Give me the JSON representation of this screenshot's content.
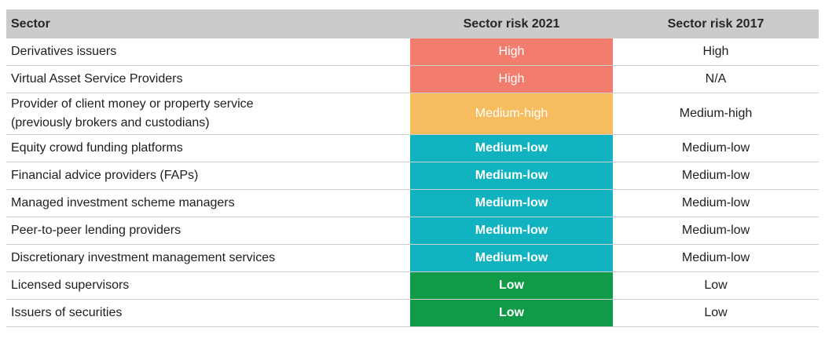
{
  "header": {
    "sector": "Sector",
    "risk_2021": "Sector risk 2021",
    "risk_2017": "Sector risk 2017"
  },
  "rows": [
    {
      "sector": "Derivatives issuers",
      "risk_2021": "High",
      "risk_2017": "High"
    },
    {
      "sector": "Virtual Asset Service Providers",
      "risk_2021": "High",
      "risk_2017": "N/A"
    },
    {
      "sector_line1": "Provider of client money or property service",
      "sector_line2": "(previously brokers and custodians)",
      "risk_2021": "Medium-high",
      "risk_2017": "Medium-high"
    },
    {
      "sector": "Equity crowd funding platforms",
      "risk_2021": "Medium-low",
      "risk_2017": "Medium-low"
    },
    {
      "sector": "Financial advice providers (FAPs)",
      "risk_2021": "Medium-low",
      "risk_2017": "Medium-low"
    },
    {
      "sector": "Managed investment scheme managers",
      "risk_2021": "Medium-low",
      "risk_2017": "Medium-low"
    },
    {
      "sector": "Peer-to-peer lending providers",
      "risk_2021": "Medium-low",
      "risk_2017": "Medium-low"
    },
    {
      "sector": "Discretionary investment management services",
      "risk_2021": "Medium-low",
      "risk_2017": "Medium-low"
    },
    {
      "sector": "Licensed supervisors",
      "risk_2021": "Low",
      "risk_2017": "Low"
    },
    {
      "sector": "Issuers of securities",
      "risk_2021": "Low",
      "risk_2017": "Low"
    }
  ],
  "colors": {
    "high": "#f27c6e",
    "medium_high": "#f7bc5e",
    "medium_low": "#12b3c1",
    "low": "#119a47",
    "header_bg": "#cbcbcb"
  }
}
